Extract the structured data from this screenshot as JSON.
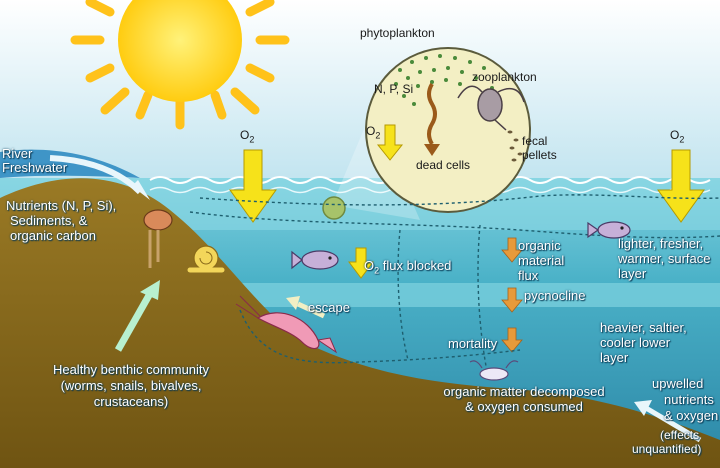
{
  "labels": {
    "phytoplankton": "phytoplankton",
    "zooplankton": "zooplankton",
    "nps": "N, P, Si",
    "dead_cells": "dead cells",
    "fecal_pellets_1": "fecal",
    "fecal_pellets_2": "pellets",
    "o2_symbol": "O",
    "o2_sub": "2",
    "river_1": "River",
    "river_2": "Freshwater",
    "nutrients_1": "Nutrients (N, P, Si),",
    "nutrients_2": "Sediments, &",
    "nutrients_3": "organic carbon",
    "o2_flux_blocked": "flux blocked",
    "organic_1": "organic",
    "organic_2": "material",
    "organic_3": "flux",
    "pycnocline": "pycnocline",
    "lighter_1": "lighter, fresher,",
    "lighter_2": "warmer, surface",
    "lighter_3": "layer",
    "escape": "escape",
    "mortality": "mortality",
    "heavier_1": "heavier, saltier,",
    "heavier_2": "cooler lower",
    "heavier_3": "layer",
    "benthic_1": "Healthy benthic community",
    "benthic_2": "(worms, snails, bivalves,",
    "benthic_3": "crustaceans)",
    "decomposed_1": "organic matter decomposed",
    "decomposed_2": "& oxygen consumed",
    "upwelled_1": "upwelled",
    "upwelled_2": "nutrients",
    "upwelled_3": "& oxygen",
    "effects_1": "(effects",
    "effects_2": "unquantified)"
  },
  "icons": [
    "sun-icon",
    "fish-icon",
    "shrimp-icon",
    "crab-icon",
    "snail-icon",
    "zooplankton-icon",
    "arrow-down-icon"
  ],
  "colors": {
    "sky_top": "#9ecfe6",
    "water_surface": "#5fb9cc",
    "water_deep": "#2f8fae",
    "seabed": "#8a6a1c",
    "sun": "#ffd21e",
    "o2_arrow": "#f6e21a",
    "flux_arrow": "#e79a3a",
    "magnifier": "#f3efc4"
  }
}
